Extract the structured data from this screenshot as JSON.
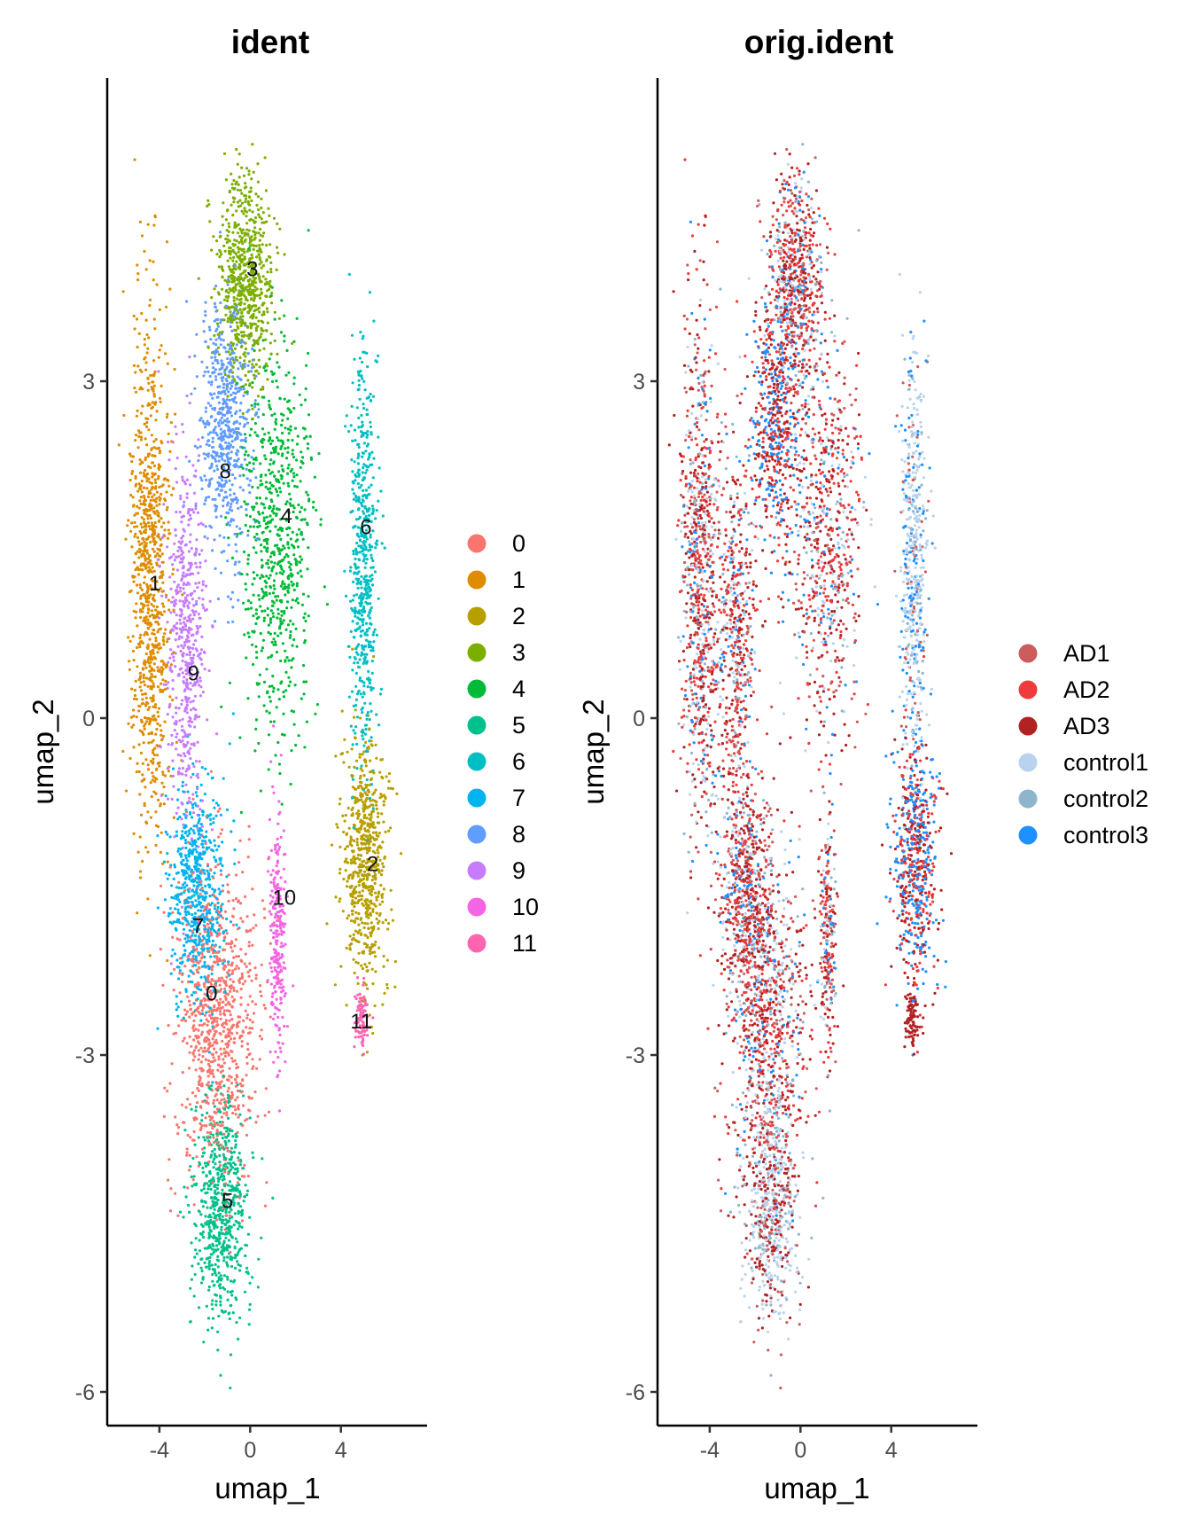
{
  "chart_data": [
    {
      "type": "scatter",
      "title": "ident",
      "xlabel": "umap_1",
      "ylabel": "umap_2",
      "xlim": [
        -6.3,
        7.8
      ],
      "ylim": [
        -6.3,
        5.7
      ],
      "xticks": [
        "-4",
        "0",
        "4"
      ],
      "xtick_values": [
        -4,
        0,
        4
      ],
      "yticks": [
        "3",
        "0",
        "-3",
        "-6"
      ],
      "ytick_values": [
        3,
        0,
        -3,
        -6
      ],
      "grid": false,
      "legend_position": "right",
      "legend_title": "",
      "series": [
        {
          "name": "0",
          "color": "#F8766D",
          "center": [
            -1.5,
            -2.7
          ],
          "spread": [
            1.7,
            1.3
          ],
          "count": 900
        },
        {
          "name": "1",
          "color": "#DE8C00",
          "center": [
            -4.4,
            1.2
          ],
          "spread": [
            0.8,
            2.1
          ],
          "count": 900
        },
        {
          "name": "2",
          "color": "#B79F00",
          "center": [
            5.1,
            -1.3
          ],
          "spread": [
            0.9,
            1.0
          ],
          "count": 650
        },
        {
          "name": "3",
          "color": "#7CAE00",
          "center": [
            -0.2,
            3.9
          ],
          "spread": [
            1.1,
            0.8
          ],
          "count": 700
        },
        {
          "name": "4",
          "color": "#00BA38",
          "center": [
            1.2,
            1.6
          ],
          "spread": [
            1.5,
            1.6
          ],
          "count": 700
        },
        {
          "name": "5",
          "color": "#00C08B",
          "center": [
            -1.3,
            -4.4
          ],
          "spread": [
            1.1,
            0.9
          ],
          "count": 650
        },
        {
          "name": "6",
          "color": "#00BFC4",
          "center": [
            5.0,
            1.4
          ],
          "spread": [
            0.5,
            1.7
          ],
          "count": 550
        },
        {
          "name": "7",
          "color": "#00B4F0",
          "center": [
            -2.3,
            -1.6
          ],
          "spread": [
            1.1,
            0.9
          ],
          "count": 650
        },
        {
          "name": "8",
          "color": "#619CFF",
          "center": [
            -1.1,
            2.6
          ],
          "spread": [
            1.0,
            1.1
          ],
          "count": 600
        },
        {
          "name": "9",
          "color": "#C77CFF",
          "center": [
            -2.8,
            0.7
          ],
          "spread": [
            0.8,
            1.6
          ],
          "count": 550
        },
        {
          "name": "10",
          "color": "#F564E3",
          "center": [
            1.2,
            -1.9
          ],
          "spread": [
            0.35,
            1.0
          ],
          "count": 250
        },
        {
          "name": "11",
          "color": "#FF64B0",
          "center": [
            4.9,
            -2.7
          ],
          "spread": [
            0.3,
            0.3
          ],
          "count": 90
        }
      ],
      "cluster_labels": [
        {
          "text": "0",
          "x": -1.7,
          "y": -2.45
        },
        {
          "text": "1",
          "x": -4.2,
          "y": 1.2
        },
        {
          "text": "2",
          "x": 5.4,
          "y": -1.3
        },
        {
          "text": "3",
          "x": 0.1,
          "y": 4.0
        },
        {
          "text": "4",
          "x": 1.6,
          "y": 1.8
        },
        {
          "text": "5",
          "x": -1.0,
          "y": -4.3
        },
        {
          "text": "6",
          "x": 5.1,
          "y": 1.7
        },
        {
          "text": "7",
          "x": -2.3,
          "y": -1.85
        },
        {
          "text": "8",
          "x": -1.1,
          "y": 2.2
        },
        {
          "text": "9",
          "x": -2.5,
          "y": 0.4
        },
        {
          "text": "10",
          "x": 1.5,
          "y": -1.6
        },
        {
          "text": "11",
          "x": 4.9,
          "y": -2.7
        }
      ]
    },
    {
      "type": "scatter",
      "title": "orig.ident",
      "xlabel": "umap_1",
      "ylabel": "umap_2",
      "xlim": [
        -6.3,
        7.8
      ],
      "ylim": [
        -6.3,
        5.7
      ],
      "xticks": [
        "-4",
        "0",
        "4"
      ],
      "xtick_values": [
        -4,
        0,
        4
      ],
      "yticks": [
        "3",
        "0",
        "-3",
        "-6"
      ],
      "ytick_values": [
        3,
        0,
        -3,
        -6
      ],
      "grid": false,
      "legend_position": "right",
      "legend_title": "",
      "series": [
        {
          "name": "AD1",
          "color": "#CD5C5C"
        },
        {
          "name": "AD2",
          "color": "#EE3B3B"
        },
        {
          "name": "AD3",
          "color": "#B22222"
        },
        {
          "name": "control1",
          "color": "#B9D3EE"
        },
        {
          "name": "control2",
          "color": "#8DB6CD"
        },
        {
          "name": "control3",
          "color": "#1E90FF"
        }
      ]
    }
  ]
}
